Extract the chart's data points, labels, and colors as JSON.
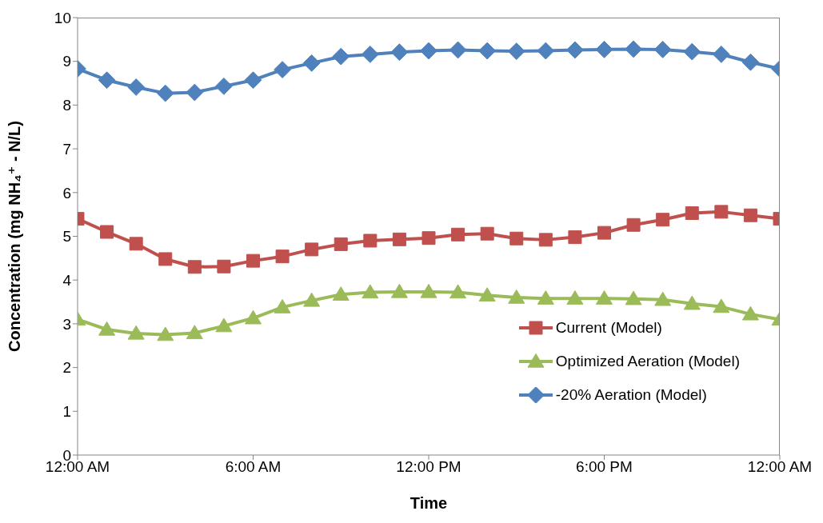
{
  "chart_data": {
    "type": "line",
    "xlabel": "Time",
    "ylabel": "Concentration (mg NH₄⁺ - N/L)",
    "x": [
      0,
      1,
      2,
      3,
      4,
      5,
      6,
      7,
      8,
      9,
      10,
      11,
      12,
      13,
      14,
      15,
      16,
      17,
      18,
      19,
      20,
      21,
      22,
      23,
      24
    ],
    "xlim": [
      0,
      24
    ],
    "xticks": [
      {
        "value": 0,
        "label": "12:00 AM"
      },
      {
        "value": 6,
        "label": "6:00 AM"
      },
      {
        "value": 12,
        "label": "12:00 PM"
      },
      {
        "value": 18,
        "label": "6:00 PM"
      },
      {
        "value": 24,
        "label": "12:00 AM"
      }
    ],
    "ylim": [
      0,
      10
    ],
    "yticks": [
      0,
      1,
      2,
      3,
      4,
      5,
      6,
      7,
      8,
      9,
      10
    ],
    "grid": false,
    "legend": "bottom right",
    "line_style": "solid",
    "series": [
      {
        "name": "Current (Model)",
        "color": "#c0504d",
        "marker": "square",
        "values": [
          5.4,
          5.1,
          4.83,
          4.48,
          4.3,
          4.31,
          4.44,
          4.54,
          4.7,
          4.82,
          4.9,
          4.93,
          4.96,
          5.04,
          5.06,
          4.95,
          4.92,
          4.98,
          5.08,
          5.26,
          5.38,
          5.53,
          5.56,
          5.48,
          5.4
        ]
      },
      {
        "name": "Optimized Aeration (Model)",
        "color": "#9bbb59",
        "marker": "triangle",
        "values": [
          3.1,
          2.87,
          2.78,
          2.75,
          2.79,
          2.95,
          3.13,
          3.38,
          3.53,
          3.67,
          3.72,
          3.73,
          3.73,
          3.72,
          3.65,
          3.6,
          3.58,
          3.58,
          3.58,
          3.57,
          3.55,
          3.46,
          3.39,
          3.22,
          3.1
        ]
      },
      {
        "name": "-20% Aeration (Model)",
        "color": "#4f81bd",
        "marker": "diamond",
        "values": [
          8.83,
          8.57,
          8.41,
          8.27,
          8.29,
          8.43,
          8.57,
          8.81,
          8.96,
          9.11,
          9.16,
          9.21,
          9.24,
          9.26,
          9.24,
          9.23,
          9.24,
          9.26,
          9.27,
          9.28,
          9.27,
          9.22,
          9.16,
          8.98,
          8.83
        ]
      }
    ]
  }
}
